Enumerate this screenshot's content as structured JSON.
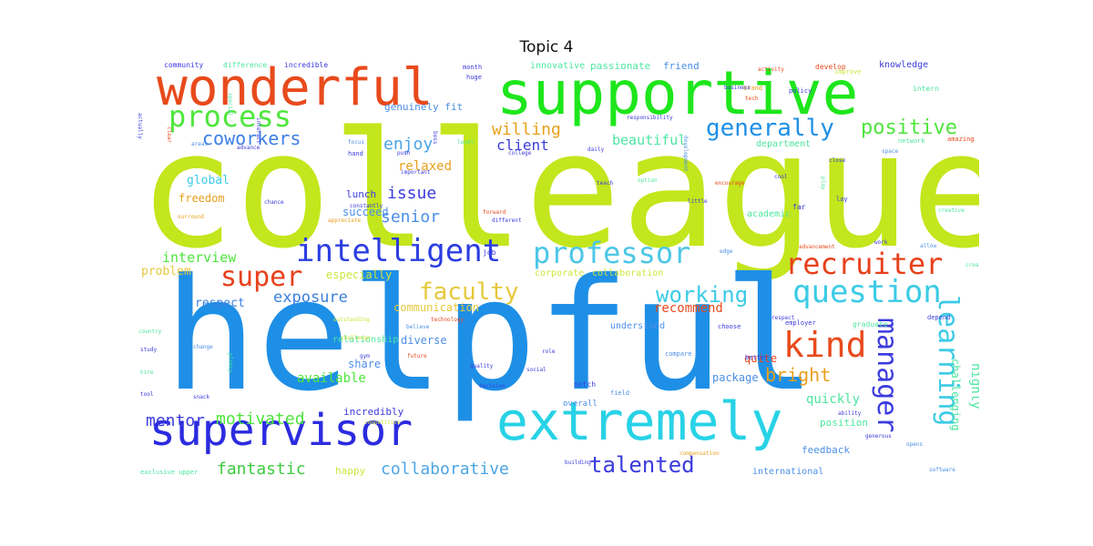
{
  "title": "Topic 4",
  "words": [
    {
      "text": "colleague",
      "color": "#c3e61c"
    },
    {
      "text": "helpful",
      "color": "#1e8fe6"
    },
    {
      "text": "supportive",
      "color": "#1ee61c"
    },
    {
      "text": "wonderful",
      "color": "#e84a1c"
    },
    {
      "text": "extremely",
      "color": "#28d2e6"
    },
    {
      "text": "supervisor",
      "color": "#2b2be0"
    },
    {
      "text": "intelligent",
      "color": "#2b3de0"
    },
    {
      "text": "professor",
      "color": "#4cc7e6"
    },
    {
      "text": "recruiter",
      "color": "#e8401c"
    },
    {
      "text": "process",
      "color": "#4ee63c"
    },
    {
      "text": "question",
      "color": "#3ccbe6"
    },
    {
      "text": "generally",
      "color": "#1e8fe6"
    },
    {
      "text": "positive",
      "color": "#4ee63c"
    },
    {
      "text": "kind",
      "color": "#e84a1c"
    },
    {
      "text": "super",
      "color": "#e8401c"
    },
    {
      "text": "faculty",
      "color": "#e6c83c"
    },
    {
      "text": "working",
      "color": "#3ccbe6"
    },
    {
      "text": "coworkers",
      "color": "#3c7fe6"
    },
    {
      "text": "talented",
      "color": "#3b3bde"
    },
    {
      "text": "manager",
      "color": "#3b3bde"
    },
    {
      "text": "learning",
      "color": "#3ccbe6"
    },
    {
      "text": "bright",
      "color": "#e8a01c"
    },
    {
      "text": "willing",
      "color": "#e8a01c"
    },
    {
      "text": "enjoy",
      "color": "#4aa5e6"
    },
    {
      "text": "client",
      "color": "#3b3bde"
    },
    {
      "text": "beautiful",
      "color": "#4ee6a0"
    },
    {
      "text": "issue",
      "color": "#3b3bde"
    },
    {
      "text": "senior",
      "color": "#4c8fe6"
    },
    {
      "text": "mentor",
      "color": "#3b3bde"
    },
    {
      "text": "motivated",
      "color": "#4ee63c"
    },
    {
      "text": "fantastic",
      "color": "#3ccb3c"
    },
    {
      "text": "collaborative",
      "color": "#4ca5e6"
    },
    {
      "text": "exposure",
      "color": "#3b7fde"
    },
    {
      "text": "interview",
      "color": "#4ee63c"
    },
    {
      "text": "recommend",
      "color": "#e84a1c"
    },
    {
      "text": "available",
      "color": "#4ee63c"
    },
    {
      "text": "highly",
      "color": "#4ee6a0"
    },
    {
      "text": "challenging",
      "color": "#4ee6a0"
    },
    {
      "text": "quickly",
      "color": "#4ee6a0"
    },
    {
      "text": "relaxed",
      "color": "#e8a01c"
    },
    {
      "text": "respect",
      "color": "#3b7fde"
    },
    {
      "text": "problem",
      "color": "#e6c83c"
    },
    {
      "text": "global",
      "color": "#3ccbe6"
    },
    {
      "text": "freedom",
      "color": "#e8a01c"
    },
    {
      "text": "lunch",
      "color": "#3b3bde"
    },
    {
      "text": "succeed",
      "color": "#4c8fe6"
    },
    {
      "text": "especially",
      "color": "#cde63c"
    },
    {
      "text": "corporate",
      "color": "#cde63c"
    },
    {
      "text": "collaboration",
      "color": "#cde63c"
    },
    {
      "text": "communication",
      "color": "#e6c83c"
    },
    {
      "text": "incredibly",
      "color": "#3b3bde"
    },
    {
      "text": "happy",
      "color": "#cde63c"
    },
    {
      "text": "position",
      "color": "#4ee6a0"
    },
    {
      "text": "feedback",
      "color": "#4c8fe6"
    },
    {
      "text": "international",
      "color": "#4c8fe6"
    },
    {
      "text": "package",
      "color": "#4c8fe6"
    },
    {
      "text": "quite",
      "color": "#e84a1c"
    },
    {
      "text": "diverse",
      "color": "#4c8fe6"
    },
    {
      "text": "understand",
      "color": "#4c8fe6"
    },
    {
      "text": "share",
      "color": "#4c8fe6"
    },
    {
      "text": "relationship",
      "color": "#4ee6a0"
    },
    {
      "text": "academic",
      "color": "#4ee6a0"
    },
    {
      "text": "department",
      "color": "#4ee6a0"
    },
    {
      "text": "genuinely fit",
      "color": "#4c8fe6"
    },
    {
      "text": "innovative",
      "color": "#4ee6a0"
    },
    {
      "text": "passionate",
      "color": "#4ee6a0"
    },
    {
      "text": "friend",
      "color": "#4c8fe6"
    },
    {
      "text": "knowledge",
      "color": "#3b3bde"
    },
    {
      "text": "community",
      "color": "#3b3bde"
    },
    {
      "text": "difference",
      "color": "#4ee6a0"
    },
    {
      "text": "incredible",
      "color": "#3b3bde"
    },
    {
      "text": "develop",
      "color": "#e84a1c"
    },
    {
      "text": "improve",
      "color": "#cde63c"
    },
    {
      "text": "activity",
      "color": "#e84a1c"
    },
    {
      "text": "month",
      "color": "#3b3bde"
    },
    {
      "text": "huge",
      "color": "#3b3bde"
    },
    {
      "text": "brand",
      "color": "#e8a01c"
    },
    {
      "text": "policy",
      "color": "#3b3bde"
    },
    {
      "text": "intern",
      "color": "#4ee6a0"
    },
    {
      "text": "network",
      "color": "#4ee6a0"
    },
    {
      "text": "amazing",
      "color": "#e84a1c"
    },
    {
      "text": "hand",
      "color": "#3b3bde"
    },
    {
      "text": "daily",
      "color": "#3b3bde"
    },
    {
      "text": "college",
      "color": "#3b3bde"
    },
    {
      "text": "important",
      "color": "#3b3bde"
    },
    {
      "text": "constantly",
      "color": "#3b3bde"
    },
    {
      "text": "chance",
      "color": "#3b3bde"
    },
    {
      "text": "surround",
      "color": "#e8a01c"
    },
    {
      "text": "appreciate",
      "color": "#e8a01c"
    },
    {
      "text": "different",
      "color": "#3b3bde"
    },
    {
      "text": "forward",
      "color": "#e84a1c"
    },
    {
      "text": "option",
      "color": "#4ee6a0"
    },
    {
      "text": "little",
      "color": "#3b3bde"
    },
    {
      "text": "far",
      "color": "#3b3bde"
    },
    {
      "text": "cool",
      "color": "#3b3bde"
    },
    {
      "text": "space",
      "color": "#4c8fe6"
    },
    {
      "text": "play",
      "color": "#4ee6a0"
    },
    {
      "text": "lay",
      "color": "#3b3bde"
    },
    {
      "text": "close",
      "color": "#3b3bde"
    },
    {
      "text": "allow",
      "color": "#4c8fe6"
    },
    {
      "text": "advancement",
      "color": "#e84a1c"
    },
    {
      "text": "work",
      "color": "#3b3bde"
    },
    {
      "text": "edge",
      "color": "#4c8fe6"
    },
    {
      "text": "job",
      "color": "#3b3bde"
    },
    {
      "text": "notch",
      "color": "#3b3bde"
    },
    {
      "text": "overall",
      "color": "#4c8fe6"
    },
    {
      "text": "field",
      "color": "#4c8fe6"
    },
    {
      "text": "compare",
      "color": "#4c8fe6"
    },
    {
      "text": "better",
      "color": "#3b3bde"
    },
    {
      "text": "choose",
      "color": "#3b3bde"
    },
    {
      "text": "employer",
      "color": "#3b3bde"
    },
    {
      "text": "graduate",
      "color": "#4ee6a0"
    },
    {
      "text": "depend",
      "color": "#3b3bde"
    },
    {
      "text": "respect",
      "color": "#3b3bde"
    },
    {
      "text": "future",
      "color": "#e84a1c"
    },
    {
      "text": "role",
      "color": "#3b3bde"
    },
    {
      "text": "believe",
      "color": "#4c8fe6"
    },
    {
      "text": "gym",
      "color": "#3b3bde"
    },
    {
      "text": "challenge",
      "color": "#cde63c"
    },
    {
      "text": "technology",
      "color": "#e84a1c"
    },
    {
      "text": "outstanding",
      "color": "#cde63c"
    },
    {
      "text": "country",
      "color": "#4ee6a0"
    },
    {
      "text": "study",
      "color": "#3b3bde"
    },
    {
      "text": "hire",
      "color": "#4ee6a0"
    },
    {
      "text": "tool",
      "color": "#3b3bde"
    },
    {
      "text": "change",
      "color": "#4c8fe6"
    },
    {
      "text": "plenty",
      "color": "#4ee6a0"
    },
    {
      "text": "snack",
      "color": "#3b3bde"
    },
    {
      "text": "quality",
      "color": "#3b3bde"
    },
    {
      "text": "social",
      "color": "#3b3bde"
    },
    {
      "text": "decision",
      "color": "#3b3bde"
    },
    {
      "text": "competitive",
      "color": "#cde63c"
    },
    {
      "text": "building",
      "color": "#3b3bde"
    },
    {
      "text": "ability",
      "color": "#3b3bde"
    },
    {
      "text": "software",
      "color": "#4c8fe6"
    },
    {
      "text": "opens",
      "color": "#4c8fe6"
    },
    {
      "text": "generous",
      "color": "#3b3bde"
    },
    {
      "text": "exclusive upper",
      "color": "#4ee6a0"
    },
    {
      "text": "compensation",
      "color": "#e8a01c"
    },
    {
      "text": "business",
      "color": "#3b3bde"
    },
    {
      "text": "encourage",
      "color": "#e84a1c"
    },
    {
      "text": "creative",
      "color": "#4ee6a0"
    },
    {
      "text": "actually",
      "color": "#3b3bde"
    },
    {
      "text": "clear",
      "color": "#e84a1c"
    },
    {
      "text": "areas",
      "color": "#4c8fe6"
    },
    {
      "text": "advance",
      "color": "#3b3bde"
    },
    {
      "text": "interact",
      "color": "#3b3bde"
    },
    {
      "text": "focus",
      "color": "#4c8fe6"
    },
    {
      "text": "push",
      "color": "#3b3bde"
    },
    {
      "text": "boss",
      "color": "#3b3bde"
    },
    {
      "text": "level",
      "color": "#4ee6a0"
    },
    {
      "text": "special",
      "color": "#4ee6a0"
    },
    {
      "text": "teach",
      "color": "#3b3bde"
    },
    {
      "text": "tech",
      "color": "#e84a1c"
    },
    {
      "text": "create",
      "color": "#4ee6a0"
    },
    {
      "text": "responsibility",
      "color": "#3b3bde"
    },
    {
      "text": "development",
      "color": "#4c8fe6"
    }
  ]
}
